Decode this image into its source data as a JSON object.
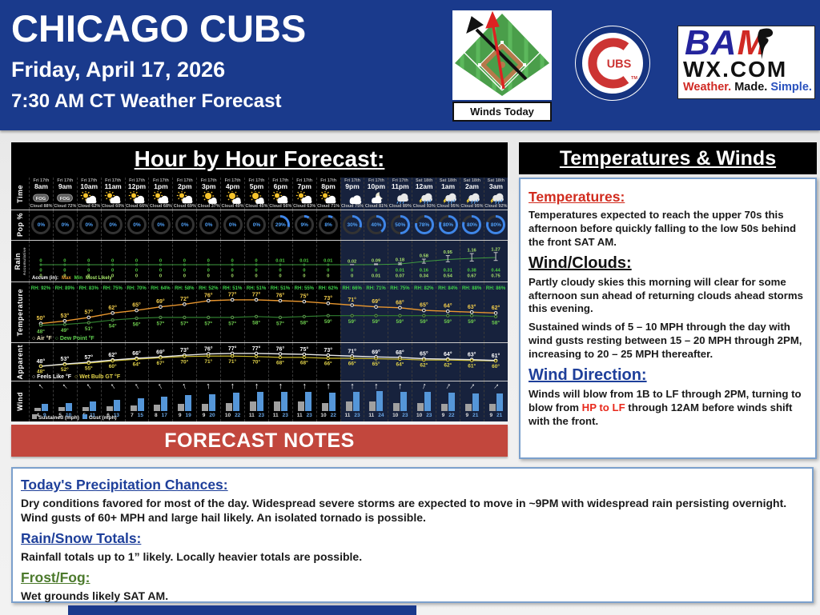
{
  "header": {
    "title": "CHICAGO CUBS",
    "date": "Friday, April 17, 2026",
    "subtitle": "7:30 AM CT Weather Forecast",
    "winds_today_label": "Winds Today",
    "cubs_logo": {
      "letters": "UBS",
      "tm": "TM"
    },
    "bam": {
      "blue_letters": "BA",
      "red_letter": "M",
      "wx": "WX.COM",
      "tagline_weather": "Weather.",
      "tagline_made": "Made.",
      "tagline_simple": "Simple."
    }
  },
  "colors": {
    "banner_blue": "#1a3a8c",
    "panel_black": "#000000",
    "night_navy": "#17223d",
    "notes_red_bar": "#c2473d",
    "heading_red": "#d12b1e",
    "heading_blue": "#1e3f9a",
    "heading_green": "#4c7a2c",
    "pop_blue": "#4e9ef5",
    "air_line": "#e8962e",
    "dew_green": "#6fcf4f",
    "wet_bulb_yellow": "#e3d44a",
    "gust_blue": "#5596d8",
    "sustained_gray": "#a0a0a0"
  },
  "chart_data": {
    "type": "table",
    "title": "Hour by Hour Forecast:",
    "row_labels": {
      "time": "Time",
      "pop": "Pop %",
      "rain1": "Rain",
      "rain2": "Accumulative",
      "temp": "Temperature",
      "apparent": "Apparent",
      "wind": "Wind"
    },
    "legends": {
      "rain_accum": "Accum (in):",
      "rain_max": "Max",
      "rain_min": "Min",
      "rain_ml": "Most Likely",
      "air": "Air °F",
      "dew": "Dew Point °F",
      "feels": "Feels Like °F",
      "wet_bulb": "Wet Bulb GT °F",
      "sustained": "Sustained (mph)",
      "gust": "Gust (mph)",
      "cloud_prefix": "Cloud ",
      "rh_prefix": "RH: "
    },
    "hours": [
      {
        "day": "Fri 17th",
        "hour": "8am",
        "icon": "fog",
        "cloud": 88,
        "pop": 0,
        "rain_max": 0,
        "rain_min": 0,
        "rain_ml": 0,
        "rh": 92,
        "air": 50,
        "dew": 48,
        "feels": 48,
        "wet_bulb": 48,
        "wind_dir_deg": -42,
        "sustained": 4,
        "gust": 9,
        "night": false
      },
      {
        "day": "Fri 17th",
        "hour": "9am",
        "icon": "fog",
        "cloud": 72,
        "pop": 0,
        "rain_max": 0,
        "rain_min": 0,
        "rain_ml": 0,
        "rh": 89,
        "air": 53,
        "dew": 49,
        "feels": 53,
        "wet_bulb": 52,
        "wind_dir_deg": -42,
        "sustained": 5,
        "gust": 10,
        "night": false
      },
      {
        "day": "Fri 17th",
        "hour": "10am",
        "icon": "partly",
        "cloud": 62,
        "pop": 0,
        "rain_max": 0,
        "rain_min": 0,
        "rain_ml": 0,
        "rh": 83,
        "air": 57,
        "dew": 51,
        "feels": 57,
        "wet_bulb": 55,
        "wind_dir_deg": -38,
        "sustained": 5,
        "gust": 11,
        "night": false
      },
      {
        "day": "Fri 17th",
        "hour": "11am",
        "icon": "partly",
        "cloud": 60,
        "pop": 0,
        "rain_max": 0,
        "rain_min": 0,
        "rain_ml": 0,
        "rh": 75,
        "air": 62,
        "dew": 54,
        "feels": 62,
        "wet_bulb": 60,
        "wind_dir_deg": -35,
        "sustained": 6,
        "gust": 13,
        "night": false
      },
      {
        "day": "Fri 17th",
        "hour": "12pm",
        "icon": "partly",
        "cloud": 66,
        "pop": 0,
        "rain_max": 0,
        "rain_min": 0,
        "rain_ml": 0,
        "rh": 70,
        "air": 65,
        "dew": 56,
        "feels": 66,
        "wet_bulb": 64,
        "wind_dir_deg": -30,
        "sustained": 7,
        "gust": 15,
        "night": false
      },
      {
        "day": "Fri 17th",
        "hour": "1pm",
        "icon": "partly",
        "cloud": 68,
        "pop": 0,
        "rain_max": 0,
        "rain_min": 0,
        "rain_ml": 0,
        "rh": 64,
        "air": 69,
        "dew": 57,
        "feels": 69,
        "wet_bulb": 67,
        "wind_dir_deg": -28,
        "sustained": 8,
        "gust": 17,
        "night": false
      },
      {
        "day": "Fri 17th",
        "hour": "2pm",
        "icon": "partly",
        "cloud": 69,
        "pop": 0,
        "rain_max": 0,
        "rain_min": 0,
        "rain_ml": 0,
        "rh": 58,
        "air": 72,
        "dew": 57,
        "feels": 73,
        "wet_bulb": 70,
        "wind_dir_deg": -18,
        "sustained": 9,
        "gust": 19,
        "night": false
      },
      {
        "day": "Fri 17th",
        "hour": "3pm",
        "icon": "sunny",
        "cloud": 37,
        "pop": 0,
        "rain_max": 0,
        "rain_min": 0,
        "rain_ml": 0,
        "rh": 52,
        "air": 76,
        "dew": 57,
        "feels": 76,
        "wet_bulb": 71,
        "wind_dir_deg": -8,
        "sustained": 9,
        "gust": 20,
        "night": false
      },
      {
        "day": "Fri 17th",
        "hour": "4pm",
        "icon": "sunny",
        "cloud": 49,
        "pop": 0,
        "rain_max": 0,
        "rain_min": 0,
        "rain_ml": 0,
        "rh": 51,
        "air": 77,
        "dew": 57,
        "feels": 77,
        "wet_bulb": 71,
        "wind_dir_deg": -3,
        "sustained": 10,
        "gust": 22,
        "night": false
      },
      {
        "day": "Fri 17th",
        "hour": "5pm",
        "icon": "sunny",
        "cloud": 45,
        "pop": 0,
        "rain_max": 0,
        "rain_min": 0,
        "rain_ml": 0,
        "rh": 51,
        "air": 77,
        "dew": 58,
        "feels": 77,
        "wet_bulb": 70,
        "wind_dir_deg": 0,
        "sustained": 11,
        "gust": 23,
        "night": false
      },
      {
        "day": "Fri 17th",
        "hour": "6pm",
        "icon": "partly",
        "cloud": 56,
        "pop": 29,
        "rain_max": 0.01,
        "rain_min": 0,
        "rain_ml": 0,
        "rh": 51,
        "air": 76,
        "dew": 57,
        "feels": 76,
        "wet_bulb": 68,
        "wind_dir_deg": 0,
        "sustained": 11,
        "gust": 23,
        "night": false
      },
      {
        "day": "Fri 17th",
        "hour": "7pm",
        "icon": "partly",
        "cloud": 63,
        "pop": 9,
        "rain_max": 0.01,
        "rain_min": 0,
        "rain_ml": 0,
        "rh": 55,
        "air": 75,
        "dew": 58,
        "feels": 75,
        "wet_bulb": 68,
        "wind_dir_deg": 0,
        "sustained": 11,
        "gust": 23,
        "night": false
      },
      {
        "day": "Fri 17th",
        "hour": "8pm",
        "icon": "partly",
        "cloud": 71,
        "pop": 8,
        "rain_max": 0.01,
        "rain_min": 0,
        "rain_ml": 0,
        "rh": 62,
        "air": 73,
        "dew": 59,
        "feels": 73,
        "wet_bulb": 66,
        "wind_dir_deg": 0,
        "sustained": 10,
        "gust": 22,
        "night": false
      },
      {
        "day": "Fri 17th",
        "hour": "9pm",
        "icon": "cloudy",
        "cloud": 75,
        "pop": 30,
        "rain_max": 0.02,
        "rain_min": 0,
        "rain_ml": 0,
        "rh": 66,
        "air": 71,
        "dew": 59,
        "feels": 71,
        "wet_bulb": 66,
        "wind_dir_deg": 0,
        "sustained": 11,
        "gust": 23,
        "night": true
      },
      {
        "day": "Fri 17th",
        "hour": "10pm",
        "icon": "mooncloud",
        "cloud": 81,
        "pop": 40,
        "rain_max": 0.09,
        "rain_min": 0,
        "rain_ml": 0.01,
        "rh": 71,
        "air": 69,
        "dew": 59,
        "feels": 69,
        "wet_bulb": 65,
        "wind_dir_deg": 0,
        "sustained": 11,
        "gust": 24,
        "night": true
      },
      {
        "day": "Fri 17th",
        "hour": "11pm",
        "icon": "rain",
        "cloud": 89,
        "pop": 50,
        "rain_max": 0.18,
        "rain_min": 0.01,
        "rain_ml": 0.07,
        "rh": 75,
        "air": 68,
        "dew": 59,
        "feels": 68,
        "wet_bulb": 64,
        "wind_dir_deg": 0,
        "sustained": 10,
        "gust": 23,
        "night": true
      },
      {
        "day": "Sat 18th",
        "hour": "12am",
        "icon": "storm",
        "cloud": 93,
        "pop": 78,
        "rain_max": 0.58,
        "rain_min": 0.16,
        "rain_ml": 0.34,
        "rh": 82,
        "air": 65,
        "dew": 59,
        "feels": 65,
        "wet_bulb": 62,
        "wind_dir_deg": 18,
        "sustained": 10,
        "gust": 23,
        "night": true
      },
      {
        "day": "Sat 18th",
        "hour": "1am",
        "icon": "storm",
        "cloud": 95,
        "pop": 80,
        "rain_max": 0.95,
        "rain_min": 0.31,
        "rain_ml": 0.54,
        "rh": 84,
        "air": 64,
        "dew": 59,
        "feels": 64,
        "wet_bulb": 62,
        "wind_dir_deg": 32,
        "sustained": 9,
        "gust": 22,
        "night": true
      },
      {
        "day": "Sat 18th",
        "hour": "2am",
        "icon": "storm",
        "cloud": 95,
        "pop": 80,
        "rain_max": 1.16,
        "rain_min": 0.38,
        "rain_ml": 0.67,
        "rh": 88,
        "air": 63,
        "dew": 59,
        "feels": 63,
        "wet_bulb": 61,
        "wind_dir_deg": 38,
        "sustained": 9,
        "gust": 21,
        "night": true
      },
      {
        "day": "Sat 18th",
        "hour": "3am",
        "icon": "storm",
        "cloud": 92,
        "pop": 80,
        "rain_max": 1.27,
        "rain_min": 0.44,
        "rain_ml": 0.75,
        "rh": 86,
        "air": 62,
        "dew": 58,
        "feels": 61,
        "wet_bulb": 60,
        "wind_dir_deg": 42,
        "sustained": 9,
        "gust": 21,
        "night": true
      }
    ]
  },
  "forecast_notes_bar": "FORECAST NOTES",
  "temps_winds": {
    "title": "Temperatures & Winds",
    "sections": {
      "temperatures": {
        "heading": "Temperatures:",
        "body": "Temperatures expected to reach the upper 70s this afternoon before quickly falling to the low 50s behind the front SAT AM."
      },
      "wind_clouds": {
        "heading": "Wind/Clouds:",
        "body1": "Partly cloudy skies this morning will clear for some afternoon sun ahead of returning clouds ahead storms this evening.",
        "body2": "Sustained winds of 5 – 10 MPH through the day with wind gusts resting between 15 – 20 MPH through 2PM, increasing to 20 – 25 MPH thereafter."
      },
      "wind_direction": {
        "heading": "Wind Direction:",
        "body_pre": "Winds will blow from 1B to LF through 2PM, turning to blow from ",
        "body_highlight": "HP to LF",
        "body_post": " through 12AM before winds shift with the front."
      }
    }
  },
  "notes": {
    "precip": {
      "heading": "Today's Precipitation Chances:",
      "body": "Dry conditions favored for most of the day. Widespread severe storms are expected to move in ~9PM with widespread rain persisting overnight. Wind gusts of 60+ MPH and large hail likely. An isolated tornado is possible."
    },
    "totals": {
      "heading": "Rain/Snow Totals:",
      "body": "Rainfall totals up to 1” likely. Locally heavier totals are possible."
    },
    "frost": {
      "heading": "Frost/Fog:",
      "body": "Wet grounds likely SAT AM."
    }
  }
}
